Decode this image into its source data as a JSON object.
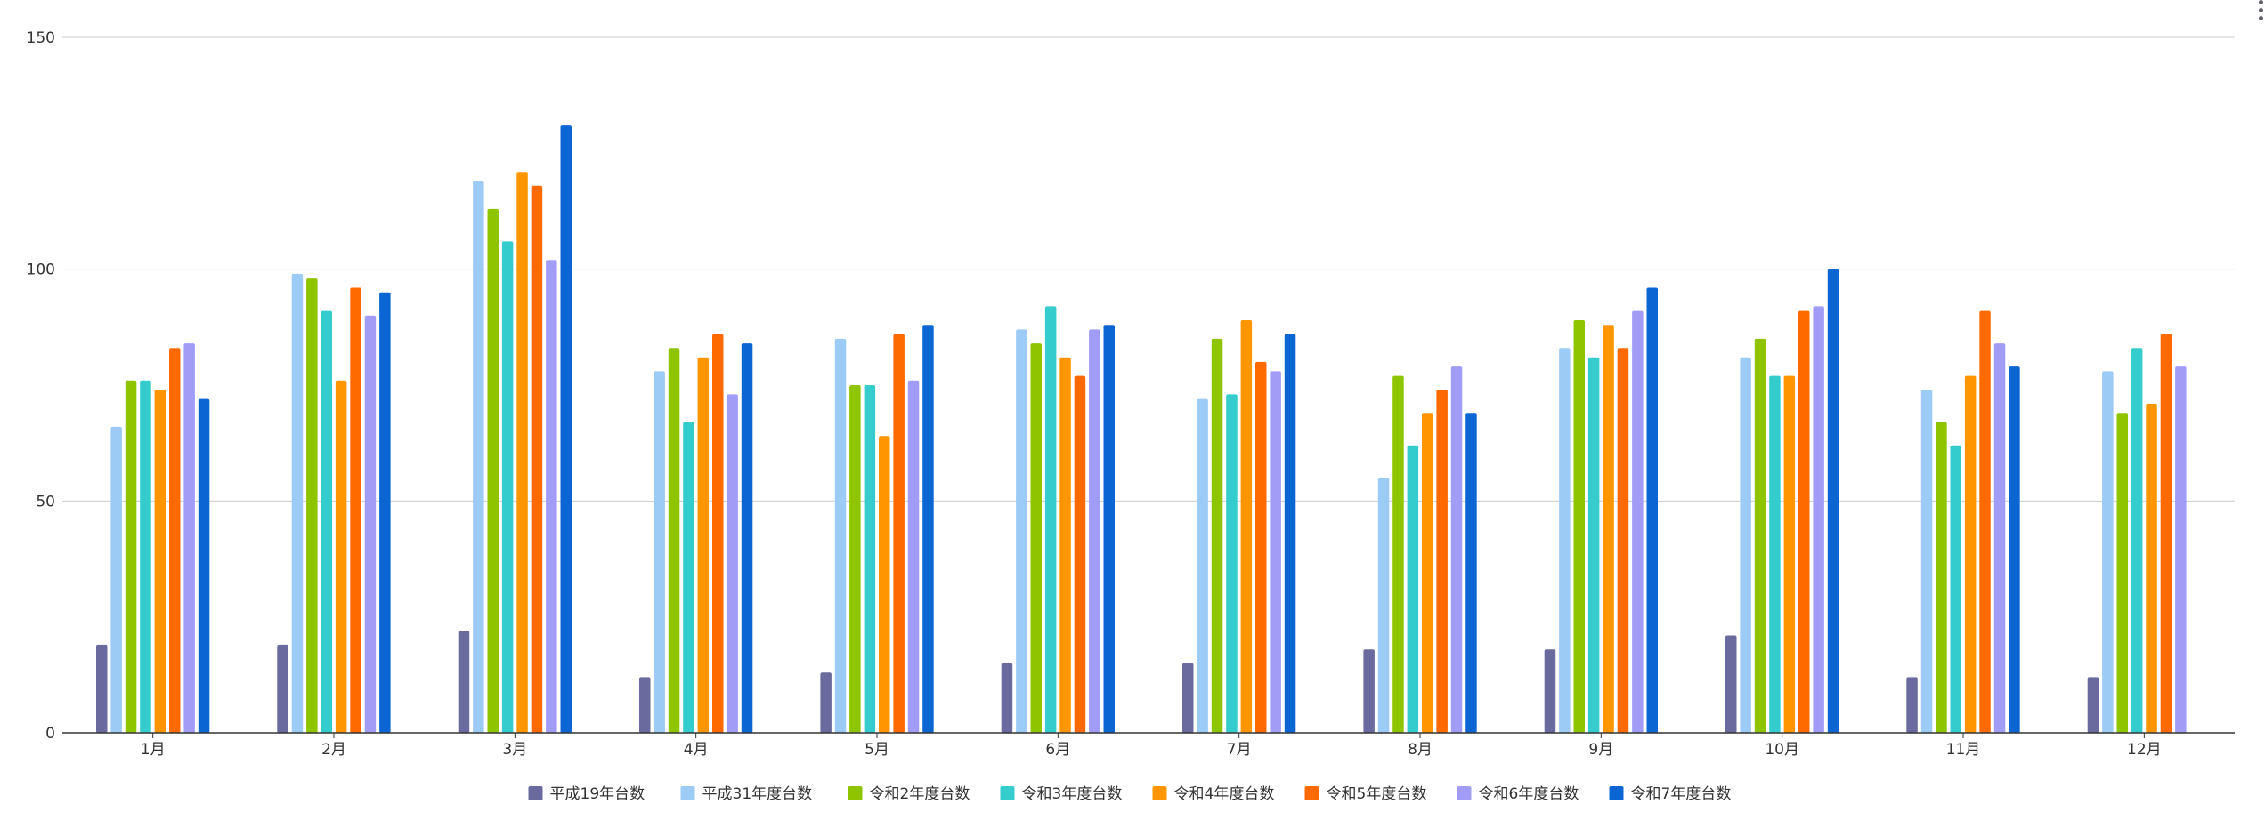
{
  "chart_data": {
    "type": "bar",
    "title": "",
    "xlabel": "",
    "ylabel": "",
    "ylim": [
      0,
      150
    ],
    "yticks": [
      0,
      50,
      100,
      150
    ],
    "grid": true,
    "legend_position": "bottom",
    "categories": [
      "1月",
      "2月",
      "3月",
      "4月",
      "5月",
      "6月",
      "7月",
      "8月",
      "9月",
      "10月",
      "11月",
      "12月"
    ],
    "series": [
      {
        "name": "平成19年台数",
        "color": "#6a6a9e",
        "values": [
          19,
          19,
          22,
          12,
          13,
          15,
          15,
          18,
          18,
          21,
          12,
          12
        ]
      },
      {
        "name": "平成31年度台数",
        "color": "#9ccbf5",
        "values": [
          66,
          99,
          119,
          78,
          85,
          87,
          72,
          55,
          83,
          81,
          74,
          78
        ]
      },
      {
        "name": "令和2年度台数",
        "color": "#8fc400",
        "values": [
          76,
          98,
          113,
          83,
          75,
          84,
          85,
          77,
          89,
          85,
          67,
          69
        ]
      },
      {
        "name": "令和3年度台数",
        "color": "#34cccc",
        "values": [
          76,
          91,
          106,
          67,
          75,
          92,
          73,
          62,
          81,
          77,
          62,
          83
        ]
      },
      {
        "name": "令和4年度台数",
        "color": "#ff9500",
        "values": [
          74,
          76,
          121,
          81,
          64,
          81,
          89,
          69,
          88,
          77,
          77,
          71
        ]
      },
      {
        "name": "令和5年度台数",
        "color": "#ff6a00",
        "values": [
          83,
          96,
          118,
          86,
          86,
          77,
          80,
          74,
          83,
          91,
          91,
          86
        ]
      },
      {
        "name": "令和6年度台数",
        "color": "#a19df7",
        "values": [
          84,
          90,
          102,
          73,
          76,
          87,
          78,
          79,
          91,
          92,
          84,
          79
        ]
      },
      {
        "name": "令和7年度台数",
        "color": "#0b66d4",
        "values": [
          72,
          95,
          131,
          84,
          88,
          88,
          86,
          69,
          96,
          100,
          79,
          null
        ]
      }
    ]
  },
  "ui": {
    "menu_icon": "more-vert-icon"
  }
}
